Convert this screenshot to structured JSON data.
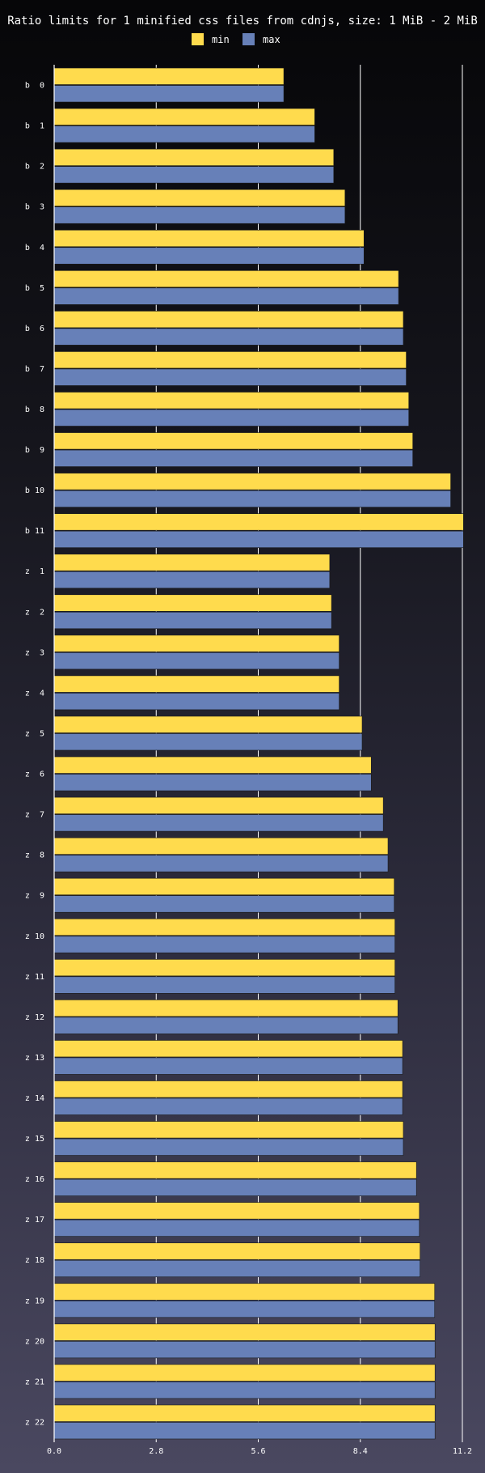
{
  "chart_data": {
    "type": "bar",
    "orientation": "horizontal",
    "title": "Ratio limits for 1 minified css files from cdnjs, size: 1 MiB - 2 MiB",
    "xlabel": "",
    "ylabel": "",
    "xlim": [
      0,
      11.2
    ],
    "xticks": [
      "0.0",
      "2.8",
      "5.6",
      "8.4",
      "11.2"
    ],
    "grid": true,
    "legend_position": "top-center",
    "categories": [
      "b  0",
      "b  1",
      "b  2",
      "b  3",
      "b  4",
      "b  5",
      "b  6",
      "b  7",
      "b  8",
      "b  9",
      "b 10",
      "b 11",
      "z  1",
      "z  2",
      "z  3",
      "z  4",
      "z  5",
      "z  6",
      "z  7",
      "z  8",
      "z  9",
      "z 10",
      "z 11",
      "z 12",
      "z 13",
      "z 14",
      "z 15",
      "z 16",
      "z 17",
      "z 18",
      "z 19",
      "z 20",
      "z 21",
      "z 22"
    ],
    "series": [
      {
        "name": "min",
        "color": "#ffdb4d",
        "values": [
          6.3,
          7.15,
          7.67,
          7.98,
          8.5,
          9.45,
          9.58,
          9.66,
          9.73,
          9.84,
          10.88,
          11.23,
          7.56,
          7.61,
          7.82,
          7.82,
          8.45,
          8.7,
          9.03,
          9.16,
          9.33,
          9.35,
          9.35,
          9.43,
          9.56,
          9.56,
          9.58,
          9.94,
          10.02,
          10.04,
          10.44,
          10.45,
          10.45,
          10.45
        ]
      },
      {
        "name": "max",
        "color": "#6780b8",
        "values": [
          6.3,
          7.15,
          7.67,
          7.98,
          8.5,
          9.45,
          9.58,
          9.66,
          9.73,
          9.84,
          10.88,
          11.23,
          7.56,
          7.61,
          7.82,
          7.82,
          8.45,
          8.7,
          9.03,
          9.16,
          9.33,
          9.35,
          9.35,
          9.43,
          9.56,
          9.56,
          9.58,
          9.94,
          10.02,
          10.04,
          10.44,
          10.45,
          10.45,
          10.45
        ]
      }
    ]
  }
}
